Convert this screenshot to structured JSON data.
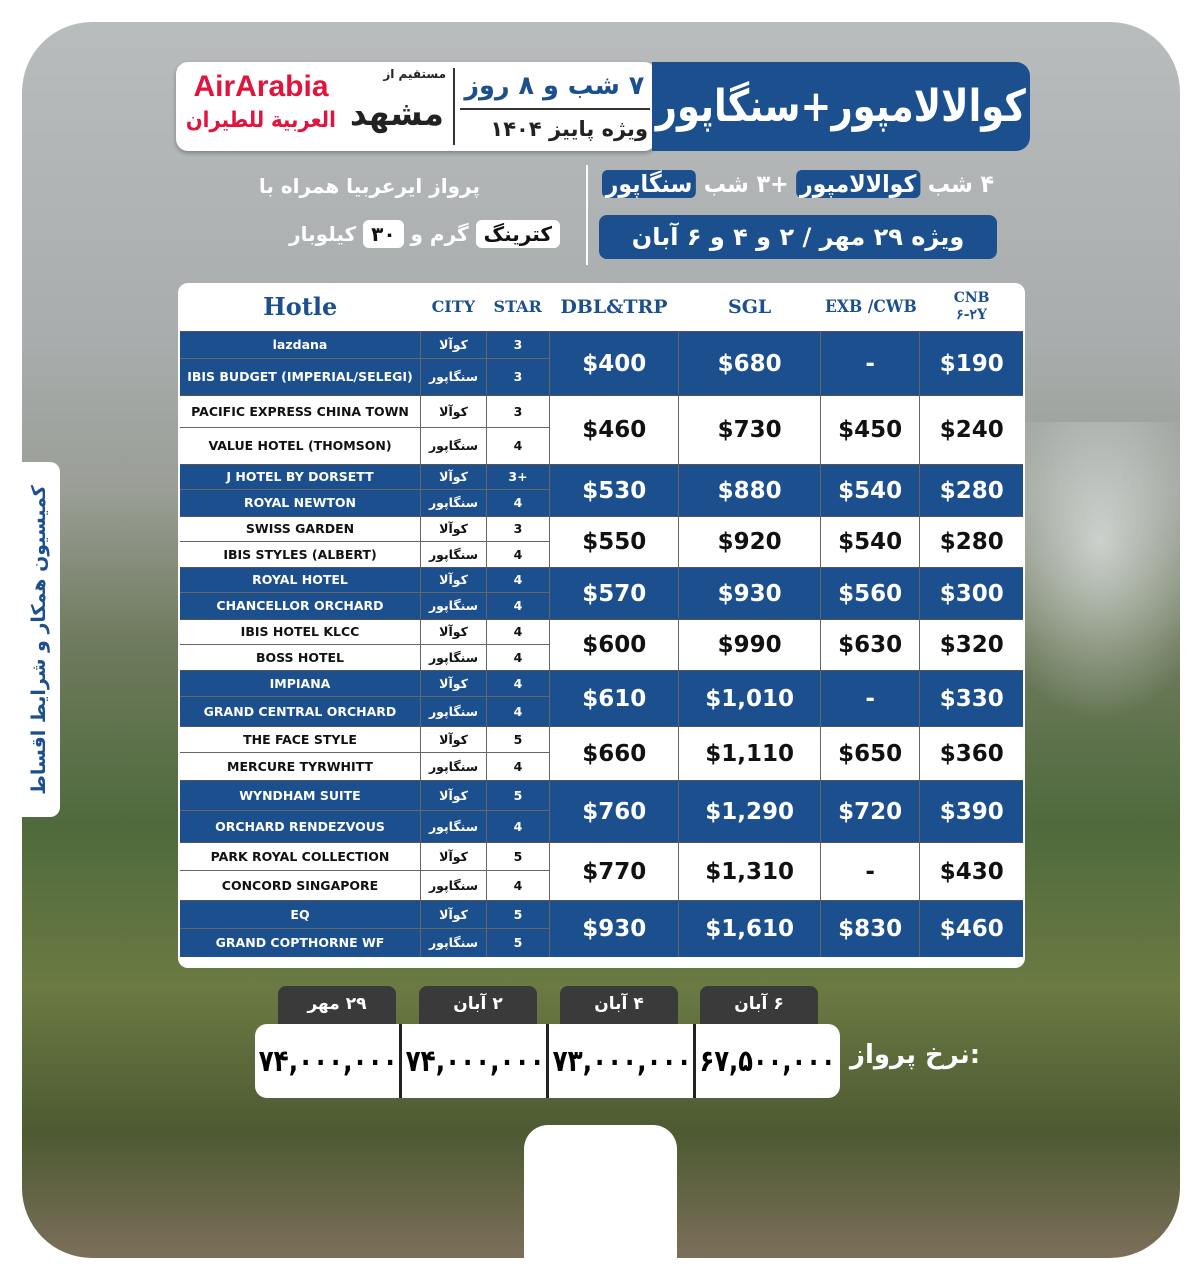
{
  "header": {
    "title": "کوالالامپور+سنگاپور",
    "duration": "۷ شب و ۸ روز",
    "season": "ویژه پاییز ۱۴۰۴",
    "from_label": "مستقیم از",
    "origin": "مشهد",
    "airline_logo_en": "AirArabia",
    "airline_logo_ar": "العربية للطيران"
  },
  "subheader": {
    "nights_prefix": "۴ شب",
    "city1": "کوالالامپور",
    "nights_mid": "+۳ شب",
    "city2": "سنگاپور",
    "dates": "ویژه ۲۹ مهر / ۲ و ۴ و ۶ آبان",
    "flight_note": "پرواز ایرعربیا همراه با",
    "catering": "کترینگ",
    "baggage_pre": "گرم و",
    "baggage_kg": "۳۰",
    "baggage_post": "کیلوبار"
  },
  "side_label": "کمیسیون همکار و شرایط اقساط",
  "table": {
    "headers": {
      "hotel": "Hotle",
      "city": "CITY",
      "star": "STAR",
      "dbl": "DBL&TRP",
      "sgl": "SGL",
      "exb": "EXB /CWB",
      "cnb": "CNB",
      "cnb_sub": "۶-۲Y"
    },
    "groups": [
      {
        "color": "blue",
        "hotels": [
          {
            "name": "lazdana",
            "city": "کوآلا",
            "star": "3"
          },
          {
            "name": "IBIS BUDGET (IMPERIAL/SELEGI)",
            "city": "سنگاپور",
            "star": "3"
          }
        ],
        "prices": [
          "$400",
          "$680",
          "-",
          "$190"
        ]
      },
      {
        "color": "white",
        "hotels": [
          {
            "name": "PACIFIC EXPRESS CHINA TOWN",
            "city": "کوآلا",
            "star": "3"
          },
          {
            "name": "VALUE HOTEL (THOMSON)",
            "city": "سنگاپور",
            "star": "4"
          }
        ],
        "prices": [
          "$460",
          "$730",
          "$450",
          "$240"
        ]
      },
      {
        "color": "blue",
        "hotels": [
          {
            "name": "J HOTEL BY DORSETT",
            "city": "کوآلا",
            "star": "3+"
          },
          {
            "name": "ROYAL NEWTON",
            "city": "سنگاپور",
            "star": "4"
          }
        ],
        "prices": [
          "$530",
          "$880",
          "$540",
          "$280"
        ]
      },
      {
        "color": "white",
        "hotels": [
          {
            "name": "SWISS GARDEN",
            "city": "کوآلا",
            "star": "3"
          },
          {
            "name": "IBIS STYLES (ALBERT)",
            "city": "سنگاپور",
            "star": "4"
          }
        ],
        "prices": [
          "$550",
          "$920",
          "$540",
          "$280"
        ]
      },
      {
        "color": "blue",
        "hotels": [
          {
            "name": "ROYAL HOTEL",
            "city": "کوآلا",
            "star": "4"
          },
          {
            "name": "CHANCELLOR ORCHARD",
            "city": "سنگاپور",
            "star": "4"
          }
        ],
        "prices": [
          "$570",
          "$930",
          "$560",
          "$300"
        ]
      },
      {
        "color": "white",
        "hotels": [
          {
            "name": "IBIS HOTEL KLCC",
            "city": "کوآلا",
            "star": "4"
          },
          {
            "name": "BOSS HOTEL",
            "city": "سنگاپور",
            "star": "4"
          }
        ],
        "prices": [
          "$600",
          "$990",
          "$630",
          "$320"
        ]
      },
      {
        "color": "blue",
        "hotels": [
          {
            "name": "IMPIANA",
            "city": "کوآلا",
            "star": "4"
          },
          {
            "name": "GRAND CENTRAL ORCHARD",
            "city": "سنگاپور",
            "star": "4"
          }
        ],
        "prices": [
          "$610",
          "$1,010",
          "-",
          "$330"
        ]
      },
      {
        "color": "white",
        "hotels": [
          {
            "name": "THE FACE STYLE",
            "city": "کوآلا",
            "star": "5"
          },
          {
            "name": "MERCURE TYRWHITT",
            "city": "سنگاپور",
            "star": "4"
          }
        ],
        "prices": [
          "$660",
          "$1,110",
          "$650",
          "$360"
        ]
      },
      {
        "color": "blue",
        "hotels": [
          {
            "name": "WYNDHAM SUITE",
            "city": "کوآلا",
            "star": "5"
          },
          {
            "name": "ORCHARD RENDEZVOUS",
            "city": "سنگاپور",
            "star": "4"
          }
        ],
        "prices": [
          "$760",
          "$1,290",
          "$720",
          "$390"
        ]
      },
      {
        "color": "white",
        "hotels": [
          {
            "name": "PARK ROYAL COLLECTION",
            "city": "کوآلا",
            "star": "5"
          },
          {
            "name": "CONCORD SINGAPORE",
            "city": "سنگاپور",
            "star": "4"
          }
        ],
        "prices": [
          "$770",
          "$1,310",
          "-",
          "$430"
        ]
      },
      {
        "color": "blue",
        "hotels": [
          {
            "name": "EQ",
            "city": "کوآلا",
            "star": "5"
          },
          {
            "name": "GRAND COPTHORNE WF",
            "city": "سنگاپور",
            "star": "5"
          }
        ],
        "prices": [
          "$930",
          "$1,610",
          "$830",
          "$460"
        ]
      }
    ]
  },
  "fares": {
    "label": "نرخ پرواز:",
    "items": [
      {
        "date": "۲۹ مهر",
        "price": "۷۴,۰۰۰,۰۰۰"
      },
      {
        "date": "۲ آبان",
        "price": "۷۴,۰۰۰,۰۰۰"
      },
      {
        "date": "۴ آبان",
        "price": "۷۳,۰۰۰,۰۰۰"
      },
      {
        "date": "۶ آبان",
        "price": "۶۷,۵۰۰,۰۰۰"
      }
    ]
  },
  "colors": {
    "brand_blue": "#1c4f8e",
    "airline_red": "#e0143c"
  }
}
